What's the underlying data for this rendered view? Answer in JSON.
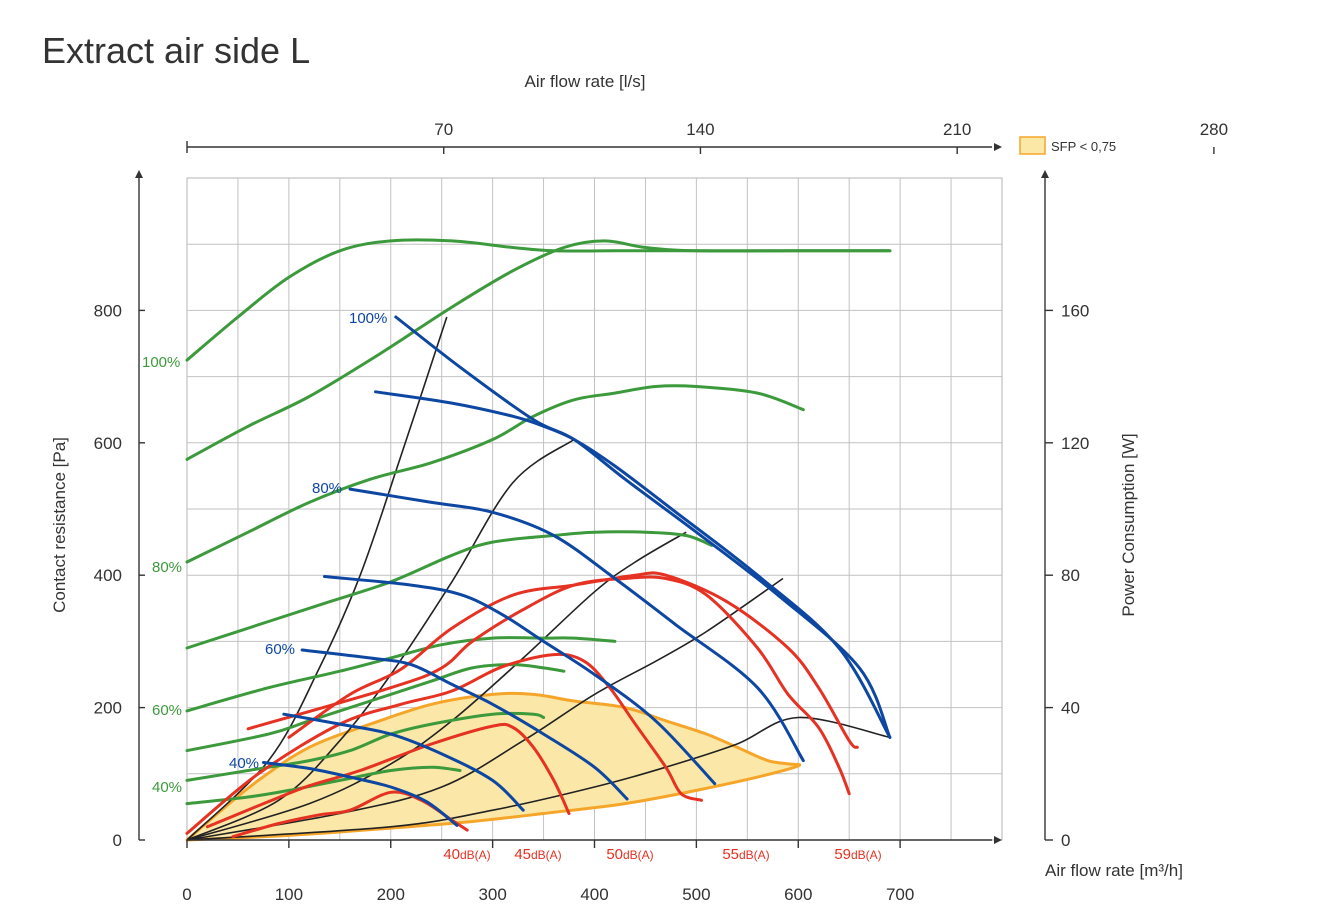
{
  "chart_data": {
    "title": "Extract air side L",
    "type": "line",
    "x_bottom": {
      "label": "Air flow rate [m³/h]",
      "range": [
        0,
        800
      ],
      "ticks": [
        0,
        100,
        200,
        300,
        400,
        500,
        600,
        700
      ]
    },
    "x_top": {
      "label": "Air flow rate [l/s]",
      "ticks": [
        70,
        140,
        210,
        280
      ]
    },
    "y_left": {
      "label": "Contact resistance [Pa]",
      "range": [
        0,
        1000
      ],
      "ticks": [
        0,
        200,
        400,
        600,
        800
      ]
    },
    "y_right": {
      "label": "Power Consumption [W]",
      "range": [
        0,
        200
      ],
      "ticks": [
        0,
        40,
        80,
        120,
        160
      ]
    },
    "grid": true,
    "legend": {
      "label": "SFP < 0,75",
      "color": "#fbe7a6",
      "position": "top-right"
    },
    "colors": {
      "pressure": "#0d47a1",
      "power": "#3c9a3c",
      "sound": "#e53222",
      "sfp_border": "#f5a62a",
      "sfp_fill": "#fbe8a8",
      "system": "#222222"
    },
    "pressure_curves": [
      {
        "name": "100%",
        "points": [
          [
            205,
            790
          ],
          [
            270,
            712
          ],
          [
            340,
            635
          ],
          [
            380,
            605
          ],
          [
            430,
            545
          ],
          [
            500,
            465
          ],
          [
            580,
            370
          ],
          [
            660,
            260
          ],
          [
            690,
            155
          ]
        ]
      },
      {
        "name": "",
        "points": [
          [
            185,
            677
          ],
          [
            260,
            660
          ],
          [
            320,
            640
          ],
          [
            350,
            625
          ],
          [
            380,
            605
          ],
          [
            420,
            565
          ],
          [
            480,
            495
          ],
          [
            560,
            400
          ],
          [
            640,
            290
          ],
          [
            690,
            155
          ]
        ]
      },
      {
        "name": "80%",
        "points": [
          [
            160,
            530
          ],
          [
            240,
            510
          ],
          [
            300,
            495
          ],
          [
            360,
            460
          ],
          [
            420,
            395
          ],
          [
            480,
            325
          ],
          [
            560,
            230
          ],
          [
            605,
            120
          ]
        ]
      },
      {
        "name": "",
        "points": [
          [
            135,
            398
          ],
          [
            220,
            385
          ],
          [
            270,
            370
          ],
          [
            310,
            340
          ],
          [
            350,
            300
          ],
          [
            400,
            250
          ],
          [
            460,
            180
          ],
          [
            518,
            85
          ]
        ]
      },
      {
        "name": "60%",
        "points": [
          [
            113,
            287
          ],
          [
            180,
            275
          ],
          [
            220,
            265
          ],
          [
            260,
            235
          ],
          [
            300,
            205
          ],
          [
            350,
            160
          ],
          [
            400,
            110
          ],
          [
            432,
            62
          ]
        ]
      },
      {
        "name": "",
        "points": [
          [
            95,
            190
          ],
          [
            150,
            175
          ],
          [
            200,
            160
          ],
          [
            250,
            130
          ],
          [
            300,
            90
          ],
          [
            330,
            45
          ]
        ]
      },
      {
        "name": "40%",
        "points": [
          [
            75,
            117
          ],
          [
            120,
            108
          ],
          [
            160,
            95
          ],
          [
            200,
            80
          ],
          [
            235,
            58
          ],
          [
            265,
            22
          ]
        ]
      }
    ],
    "power_curves": [
      {
        "name": "100%",
        "points": [
          [
            0,
            145
          ],
          [
            50,
            158
          ],
          [
            100,
            170
          ],
          [
            150,
            178
          ],
          [
            200,
            181
          ],
          [
            260,
            181
          ],
          [
            320,
            179
          ],
          [
            360,
            178
          ],
          [
            420,
            178
          ],
          [
            500,
            178
          ],
          [
            600,
            178
          ],
          [
            690,
            178
          ]
        ]
      },
      {
        "name": "",
        "points": [
          [
            0,
            115
          ],
          [
            60,
            125
          ],
          [
            120,
            134
          ],
          [
            190,
            147
          ],
          [
            260,
            161
          ],
          [
            320,
            172
          ],
          [
            370,
            179
          ],
          [
            410,
            181
          ],
          [
            450,
            179
          ],
          [
            500,
            178
          ],
          [
            600,
            178
          ],
          [
            690,
            178
          ]
        ]
      },
      {
        "name": "",
        "points": [
          [
            0,
            84
          ],
          [
            60,
            93
          ],
          [
            120,
            102
          ],
          [
            180,
            109
          ],
          [
            240,
            114
          ],
          [
            300,
            121
          ],
          [
            340,
            128
          ],
          [
            380,
            133
          ],
          [
            420,
            135
          ],
          [
            460,
            137
          ],
          [
            500,
            137
          ],
          [
            560,
            135
          ],
          [
            605,
            130
          ]
        ]
      },
      {
        "name": "80%",
        "points": [
          [
            0,
            58
          ],
          [
            80,
            66
          ],
          [
            140,
            72
          ],
          [
            200,
            78
          ],
          [
            260,
            86
          ],
          [
            300,
            90
          ],
          [
            360,
            92
          ],
          [
            400,
            93
          ],
          [
            450,
            93
          ],
          [
            490,
            92
          ],
          [
            515,
            89
          ]
        ]
      },
      {
        "name": "",
        "points": [
          [
            0,
            39
          ],
          [
            80,
            46
          ],
          [
            150,
            51
          ],
          [
            200,
            55
          ],
          [
            250,
            59
          ],
          [
            300,
            61
          ],
          [
            350,
            61
          ],
          [
            380,
            61
          ],
          [
            420,
            60
          ]
        ]
      },
      {
        "name": "60%",
        "points": [
          [
            0,
            27
          ],
          [
            80,
            32
          ],
          [
            120,
            36
          ],
          [
            180,
            42
          ],
          [
            240,
            48
          ],
          [
            280,
            52
          ],
          [
            320,
            53
          ],
          [
            350,
            52
          ],
          [
            370,
            51
          ]
        ]
      },
      {
        "name": "",
        "points": [
          [
            0,
            18
          ],
          [
            60,
            21
          ],
          [
            120,
            24
          ],
          [
            160,
            27
          ],
          [
            200,
            32
          ],
          [
            240,
            35
          ],
          [
            300,
            38
          ],
          [
            340,
            38
          ],
          [
            350,
            37
          ]
        ]
      },
      {
        "name": "40%",
        "points": [
          [
            0,
            11
          ],
          [
            60,
            13
          ],
          [
            100,
            15
          ],
          [
            150,
            18
          ],
          [
            200,
            21
          ],
          [
            240,
            22
          ],
          [
            268,
            21
          ]
        ]
      }
    ],
    "sound_curves": [
      {
        "name": "40dB(A)",
        "points": [
          [
            45,
            5
          ],
          [
            90,
            25
          ],
          [
            130,
            38
          ],
          [
            160,
            45
          ],
          [
            200,
            72
          ],
          [
            230,
            60
          ],
          [
            260,
            30
          ],
          [
            275,
            15
          ]
        ]
      },
      {
        "name": "45dB(A)",
        "points": [
          [
            20,
            20
          ],
          [
            80,
            58
          ],
          [
            120,
            82
          ],
          [
            170,
            105
          ],
          [
            240,
            145
          ],
          [
            300,
            172
          ],
          [
            320,
            170
          ],
          [
            340,
            140
          ],
          [
            360,
            90
          ],
          [
            375,
            40
          ]
        ]
      },
      {
        "name": "50dB(A)",
        "points": [
          [
            0,
            10
          ],
          [
            70,
            100
          ],
          [
            150,
            175
          ],
          [
            210,
            205
          ],
          [
            260,
            225
          ],
          [
            310,
            262
          ],
          [
            360,
            280
          ],
          [
            390,
            270
          ],
          [
            415,
            230
          ],
          [
            440,
            175
          ],
          [
            470,
            110
          ],
          [
            485,
            70
          ],
          [
            505,
            60
          ]
        ]
      },
      {
        "name": "55dB(A)",
        "points": [
          [
            60,
            168
          ],
          [
            200,
            230
          ],
          [
            250,
            260
          ],
          [
            280,
            300
          ],
          [
            330,
            348
          ],
          [
            380,
            385
          ],
          [
            430,
            395
          ],
          [
            470,
            395
          ],
          [
            510,
            370
          ],
          [
            560,
            290
          ],
          [
            590,
            220
          ],
          [
            620,
            170
          ],
          [
            640,
            110
          ],
          [
            650,
            70
          ]
        ]
      },
      {
        "name": "59dB(A)",
        "points": [
          [
            100,
            155
          ],
          [
            160,
            220
          ],
          [
            210,
            258
          ],
          [
            260,
            320
          ],
          [
            320,
            370
          ],
          [
            380,
            385
          ],
          [
            440,
            400
          ],
          [
            470,
            400
          ],
          [
            530,
            360
          ],
          [
            590,
            290
          ],
          [
            620,
            230
          ],
          [
            650,
            150
          ],
          [
            658,
            140
          ]
        ]
      }
    ],
    "system_curves": [
      [
        [
          0,
          0
        ],
        [
          80,
          120
        ],
        [
          130,
          260
        ],
        [
          170,
          400
        ],
        [
          210,
          580
        ],
        [
          255,
          790
        ]
      ],
      [
        [
          0,
          0
        ],
        [
          90,
          60
        ],
        [
          150,
          150
        ],
        [
          200,
          250
        ],
        [
          260,
          390
        ],
        [
          320,
          540
        ],
        [
          380,
          605
        ]
      ],
      [
        [
          0,
          0
        ],
        [
          120,
          55
        ],
        [
          200,
          115
        ],
        [
          260,
          180
        ],
        [
          330,
          275
        ],
        [
          400,
          375
        ],
        [
          440,
          420
        ],
        [
          490,
          465
        ]
      ],
      [
        [
          0,
          0
        ],
        [
          150,
          40
        ],
        [
          250,
          80
        ],
        [
          330,
          150
        ],
        [
          400,
          220
        ],
        [
          460,
          270
        ],
        [
          510,
          315
        ],
        [
          585,
          395
        ]
      ],
      [
        [
          0,
          0
        ],
        [
          200,
          20
        ],
        [
          300,
          45
        ],
        [
          400,
          80
        ],
        [
          470,
          110
        ],
        [
          540,
          145
        ],
        [
          600,
          185
        ],
        [
          690,
          155
        ]
      ]
    ],
    "sfp_region": [
      [
        0,
        0
      ],
      [
        30,
        40
      ],
      [
        70,
        90
      ],
      [
        120,
        140
      ],
      [
        180,
        175
      ],
      [
        240,
        205
      ],
      [
        300,
        220
      ],
      [
        340,
        220
      ],
      [
        380,
        210
      ],
      [
        430,
        200
      ],
      [
        470,
        180
      ],
      [
        510,
        160
      ],
      [
        540,
        140
      ],
      [
        570,
        120
      ],
      [
        590,
        115
      ],
      [
        600,
        112
      ],
      [
        560,
        95
      ],
      [
        500,
        75
      ],
      [
        430,
        55
      ],
      [
        350,
        40
      ],
      [
        280,
        28
      ],
      [
        200,
        18
      ],
      [
        100,
        7
      ],
      [
        0,
        0
      ]
    ]
  },
  "labels": {
    "pressure_pct": [
      "100%",
      "80%",
      "60%",
      "40%"
    ],
    "power_pct": [
      "100%",
      "80%",
      "60%",
      "40%"
    ],
    "sound": [
      "40dB(A)",
      "45dB(A)",
      "50dB(A)",
      "55dB(A)",
      "59dB(A)"
    ]
  }
}
